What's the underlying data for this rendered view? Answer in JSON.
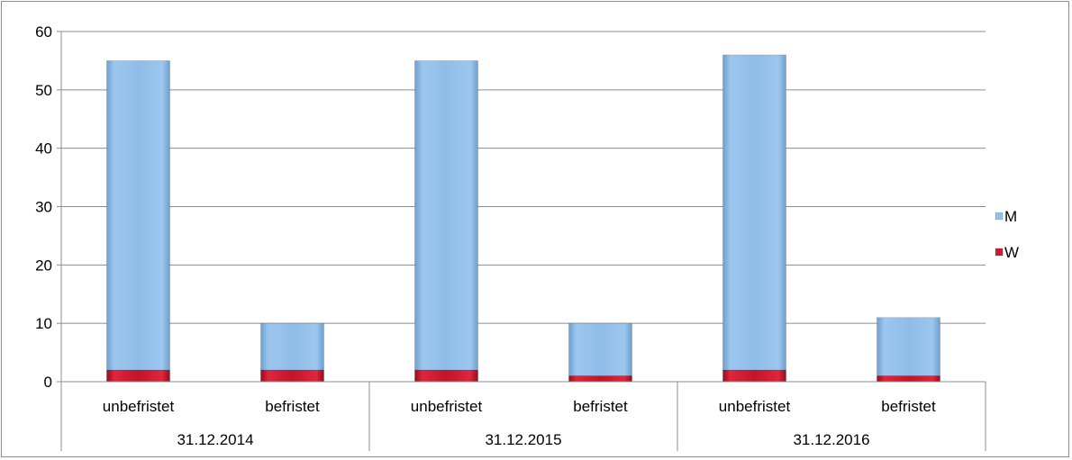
{
  "chart_data": {
    "type": "bar",
    "stacked": true,
    "groups": [
      "31.12.2014",
      "31.12.2015",
      "31.12.2016"
    ],
    "categories": [
      "unbefristet",
      "befristet",
      "unbefristet",
      "befristet",
      "unbefristet",
      "befristet"
    ],
    "category_group": [
      0,
      0,
      1,
      1,
      2,
      2
    ],
    "series": [
      {
        "name": "W",
        "color": "#c0152a",
        "values": [
          2,
          2,
          2,
          1,
          2,
          1
        ]
      },
      {
        "name": "M",
        "color": "#8fbde8",
        "values": [
          53,
          8,
          53,
          9,
          54,
          10
        ]
      }
    ],
    "legend_order": [
      "M",
      "W"
    ],
    "ylim": [
      0,
      60
    ],
    "yticks": [
      0,
      10,
      20,
      30,
      40,
      50,
      60
    ],
    "grid": true,
    "legend": "right",
    "title": "",
    "xlabel": "",
    "ylabel": ""
  }
}
